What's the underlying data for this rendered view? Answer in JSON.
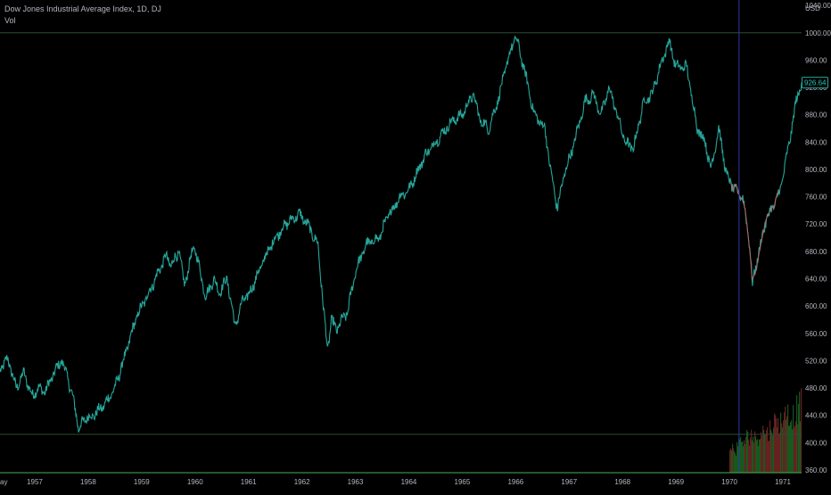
{
  "legend": {
    "title": "Dow Jones Industrial Average Index, 1D, DJ",
    "indicator": "Vol"
  },
  "currency_label": "USD",
  "last_price": "926.64",
  "colors": {
    "background": "#000000",
    "price_up": "#26a69a",
    "price_down": "#ef5350",
    "volume_up": "#1b5e20",
    "volume_down": "#6d2424",
    "crosshair": "#2b3aa8",
    "grid_line": "#2a4d32",
    "axis_text": "#b2b5be"
  },
  "chart_data": {
    "type": "line",
    "title": "Dow Jones Industrial Average Index, 1D, DJ",
    "x_axis": {
      "tick_labels": [
        "ay",
        "1957",
        "1958",
        "1959",
        "1960",
        "1961",
        "1962",
        "1963",
        "1964",
        "1965",
        "1966",
        "1967",
        "1968",
        "1969",
        "1970",
        "1971"
      ],
      "range": [
        1956.35,
        1971.35
      ]
    },
    "y_axis": {
      "label": "USD",
      "tick_labels": [
        "1040.00",
        "1000.00",
        "960.00",
        "920.00",
        "880.00",
        "840.00",
        "800.00",
        "760.00",
        "720.00",
        "680.00",
        "640.00",
        "600.00",
        "560.00",
        "520.00",
        "480.00",
        "440.00",
        "400.00",
        "360.00"
      ],
      "tick_values": [
        1040,
        1000,
        960,
        920,
        880,
        840,
        800,
        760,
        720,
        680,
        640,
        600,
        560,
        520,
        480,
        440,
        400,
        360
      ],
      "range": [
        356,
        1048
      ]
    },
    "series": [
      {
        "values": [
          [
            1956.35,
            507
          ],
          [
            1956.5,
            523
          ],
          [
            1956.65,
            480
          ],
          [
            1956.8,
            502
          ],
          [
            1956.95,
            468
          ],
          [
            1957.05,
            480
          ],
          [
            1957.2,
            475
          ],
          [
            1957.35,
            500
          ],
          [
            1957.5,
            521
          ],
          [
            1957.6,
            500
          ],
          [
            1957.7,
            470
          ],
          [
            1957.78,
            441
          ],
          [
            1957.82,
            420
          ],
          [
            1957.95,
            436
          ],
          [
            1958.1,
            440
          ],
          [
            1958.3,
            455
          ],
          [
            1958.5,
            480
          ],
          [
            1958.7,
            530
          ],
          [
            1958.9,
            583
          ],
          [
            1959.2,
            630
          ],
          [
            1959.45,
            673
          ],
          [
            1959.55,
            660
          ],
          [
            1959.7,
            680
          ],
          [
            1959.8,
            630
          ],
          [
            1959.95,
            680
          ],
          [
            1960.0,
            685
          ],
          [
            1960.2,
            613
          ],
          [
            1960.35,
            640
          ],
          [
            1960.45,
            620
          ],
          [
            1960.6,
            640
          ],
          [
            1960.75,
            570
          ],
          [
            1960.9,
            610
          ],
          [
            1961.0,
            615
          ],
          [
            1961.3,
            670
          ],
          [
            1961.5,
            700
          ],
          [
            1961.7,
            720
          ],
          [
            1961.95,
            735
          ],
          [
            1962.1,
            720
          ],
          [
            1962.3,
            690
          ],
          [
            1962.4,
            600
          ],
          [
            1962.48,
            535
          ],
          [
            1962.55,
            580
          ],
          [
            1962.65,
            565
          ],
          [
            1962.75,
            580
          ],
          [
            1962.85,
            590
          ],
          [
            1963.0,
            650
          ],
          [
            1963.2,
            690
          ],
          [
            1963.45,
            700
          ],
          [
            1963.6,
            730
          ],
          [
            1963.85,
            762
          ],
          [
            1964.0,
            770
          ],
          [
            1964.3,
            820
          ],
          [
            1964.5,
            840
          ],
          [
            1964.8,
            870
          ],
          [
            1965.0,
            880
          ],
          [
            1965.2,
            910
          ],
          [
            1965.35,
            870
          ],
          [
            1965.5,
            860
          ],
          [
            1965.7,
            910
          ],
          [
            1965.85,
            960
          ],
          [
            1966.0,
            995
          ],
          [
            1966.15,
            950
          ],
          [
            1966.35,
            880
          ],
          [
            1966.55,
            860
          ],
          [
            1966.65,
            800
          ],
          [
            1966.78,
            743
          ],
          [
            1966.9,
            790
          ],
          [
            1967.1,
            840
          ],
          [
            1967.3,
            900
          ],
          [
            1967.45,
            910
          ],
          [
            1967.6,
            880
          ],
          [
            1967.75,
            920
          ],
          [
            1967.9,
            880
          ],
          [
            1968.05,
            840
          ],
          [
            1968.2,
            830
          ],
          [
            1968.4,
            900
          ],
          [
            1968.55,
            910
          ],
          [
            1968.7,
            950
          ],
          [
            1968.87,
            988
          ],
          [
            1969.0,
            950
          ],
          [
            1969.2,
            950
          ],
          [
            1969.4,
            860
          ],
          [
            1969.55,
            840
          ],
          [
            1969.65,
            800
          ],
          [
            1969.8,
            860
          ],
          [
            1969.95,
            790
          ],
          [
            1970.1,
            770
          ],
          [
            1970.25,
            760
          ],
          [
            1970.38,
            690
          ],
          [
            1970.43,
            631
          ],
          [
            1970.55,
            680
          ],
          [
            1970.7,
            730
          ],
          [
            1970.85,
            750
          ],
          [
            1970.95,
            770
          ],
          [
            1971.1,
            830
          ],
          [
            1971.25,
            900
          ],
          [
            1971.35,
            927
          ]
        ]
      }
    ],
    "crosshair_x": 1970.18,
    "price_line": 1000,
    "volume": {
      "start": 1970.0,
      "end": 1971.35,
      "levels": [
        0.35,
        0.3,
        0.4,
        0.45,
        0.42,
        0.5,
        0.55,
        0.48,
        0.5,
        0.6,
        0.58,
        0.55,
        0.62,
        0.7,
        0.68,
        0.72,
        0.78,
        0.85,
        0.75,
        0.8,
        0.88,
        0.95
      ]
    },
    "grid": false,
    "legend_position": "top-left"
  }
}
